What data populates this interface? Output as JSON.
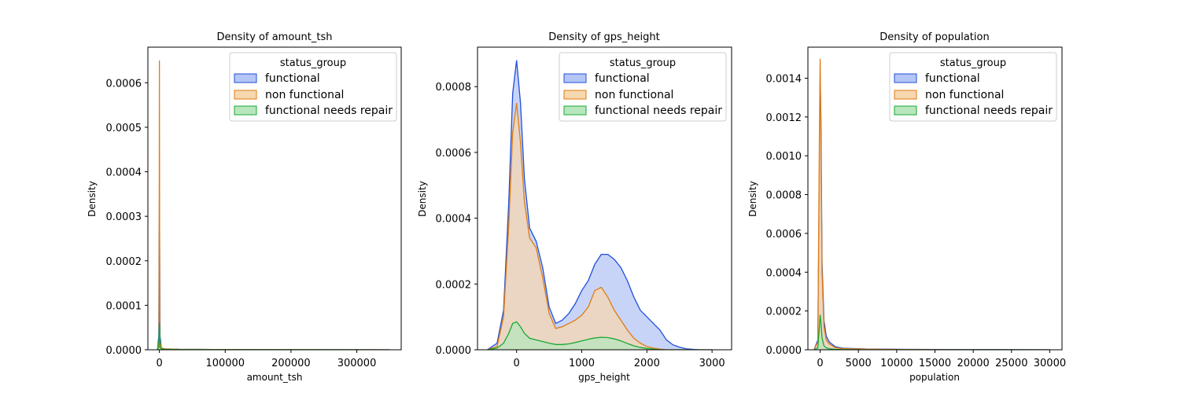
{
  "chart_data": [
    {
      "type": "area",
      "title": "Density of amount_tsh",
      "xlabel": "amount_tsh",
      "ylabel": "Density",
      "xlim": [
        -17500,
        367500
      ],
      "ylim": [
        0,
        0.00068
      ],
      "xticks": [
        0,
        100000,
        200000,
        300000
      ],
      "xtick_labels": [
        "0",
        "100000",
        "200000",
        "300000"
      ],
      "yticks": [
        0,
        0.0001,
        0.0002,
        0.0003,
        0.0004,
        0.0005,
        0.0006
      ],
      "ytick_labels": [
        "0.0000",
        "0.0001",
        "0.0002",
        "0.0003",
        "0.0004",
        "0.0005",
        "0.0006"
      ],
      "legend": {
        "title": "status_group",
        "position": "upper right"
      },
      "series": [
        {
          "name": "functional",
          "color": "#1f4fd8",
          "fill": "#b4c6f5",
          "x": [
            -3000,
            -1000,
            -400,
            0,
            400,
            1000,
            3000,
            8000,
            30000,
            100000,
            350000
          ],
          "y": [
            0,
            3e-05,
            0.00022,
            0.000345,
            0.00022,
            3e-05,
            4e-06,
            2e-06,
            1e-06,
            5e-07,
            0
          ]
        },
        {
          "name": "non functional",
          "color": "#e07b12",
          "fill": "#f6d7b0",
          "x": [
            -3000,
            -600,
            -200,
            0,
            200,
            600,
            3000,
            8000,
            30000,
            100000,
            350000
          ],
          "y": [
            0,
            2e-05,
            0.0004,
            0.00065,
            0.0004,
            2e-05,
            4e-06,
            2e-06,
            1e-06,
            5e-07,
            0
          ]
        },
        {
          "name": "functional needs repair",
          "color": "#1aa832",
          "fill": "#b8e6bd",
          "x": [
            -3000,
            -1000,
            -400,
            0,
            400,
            1000,
            3000,
            8000,
            30000,
            100000,
            350000
          ],
          "y": [
            0,
            5e-06,
            4e-05,
            6e-05,
            4e-05,
            5e-06,
            2e-06,
            1e-06,
            5e-07,
            2e-07,
            0
          ]
        }
      ]
    },
    {
      "type": "area",
      "title": "Density of gps_height",
      "xlabel": "gps_height",
      "ylabel": "Density",
      "xlim": [
        -600,
        3300
      ],
      "ylim": [
        0,
        0.00092
      ],
      "xticks": [
        0,
        1000,
        2000,
        3000
      ],
      "xtick_labels": [
        "0",
        "1000",
        "2000",
        "3000"
      ],
      "yticks": [
        0,
        0.0002,
        0.0004,
        0.0006,
        0.0008
      ],
      "ytick_labels": [
        "0.0000",
        "0.0002",
        "0.0004",
        "0.0006",
        "0.0008"
      ],
      "legend": {
        "title": "status_group",
        "position": "upper right"
      },
      "series": [
        {
          "name": "functional",
          "color": "#1f4fd8",
          "fill": "#b4c6f5",
          "x": [
            -450,
            -300,
            -200,
            -120,
            -60,
            0,
            60,
            120,
            200,
            300,
            400,
            500,
            600,
            700,
            800,
            900,
            1000,
            1100,
            1200,
            1300,
            1400,
            1500,
            1600,
            1700,
            1800,
            1900,
            2000,
            2100,
            2200,
            2300,
            2400,
            2500,
            2600,
            2800,
            3000
          ],
          "y": [
            0,
            2e-05,
            0.00012,
            0.00045,
            0.00078,
            0.00088,
            0.00075,
            0.00052,
            0.00037,
            0.00033,
            0.00025,
            0.00013,
            8e-05,
            9e-05,
            0.00011,
            0.00014,
            0.00018,
            0.00021,
            0.00026,
            0.00029,
            0.00029,
            0.000275,
            0.00025,
            0.00021,
            0.00016,
            0.00012,
            0.0001,
            8e-05,
            6e-05,
            3e-05,
            1.5e-05,
            8e-06,
            3e-06,
            0,
            0
          ]
        },
        {
          "name": "non functional",
          "color": "#e07b12",
          "fill": "#f6d7b0",
          "x": [
            -450,
            -300,
            -200,
            -120,
            -60,
            0,
            60,
            120,
            200,
            300,
            400,
            500,
            600,
            700,
            800,
            900,
            1000,
            1100,
            1200,
            1300,
            1400,
            1500,
            1600,
            1700,
            1800,
            1900,
            2000,
            2100,
            2200,
            2300,
            2400,
            2500,
            2600,
            2800,
            3000
          ],
          "y": [
            0,
            1e-05,
            0.0001,
            0.00038,
            0.00066,
            0.00075,
            0.00063,
            0.00045,
            0.00034,
            0.00031,
            0.00022,
            0.00011,
            6.5e-05,
            7e-05,
            8e-05,
            9e-05,
            0.000105,
            0.00013,
            0.00018,
            0.00019,
            0.00016,
            0.00012,
            9e-05,
            6e-05,
            3.5e-05,
            2e-05,
            1e-05,
            5e-06,
            2e-06,
            0,
            0,
            0,
            0,
            0,
            0
          ]
        },
        {
          "name": "functional needs repair",
          "color": "#1aa832",
          "fill": "#b8e6bd",
          "x": [
            -450,
            -300,
            -200,
            -120,
            -60,
            0,
            60,
            120,
            200,
            300,
            400,
            500,
            600,
            700,
            800,
            900,
            1000,
            1100,
            1200,
            1300,
            1400,
            1500,
            1600,
            1700,
            1800,
            1900,
            2000,
            2100,
            2200,
            2300,
            2400,
            2500,
            2600,
            2800,
            3000
          ],
          "y": [
            0,
            5e-06,
            2e-05,
            5e-05,
            8e-05,
            8.5e-05,
            7e-05,
            5e-05,
            3.5e-05,
            3e-05,
            2.5e-05,
            2e-05,
            1.6e-05,
            1.6e-05,
            1.8e-05,
            2.2e-05,
            2.7e-05,
            3.2e-05,
            3.6e-05,
            3.8e-05,
            3.7e-05,
            3.3e-05,
            2.7e-05,
            1.9e-05,
            1.2e-05,
            7e-06,
            4e-06,
            2e-06,
            0,
            0,
            0,
            0,
            0,
            0,
            0
          ]
        }
      ]
    },
    {
      "type": "area",
      "title": "Density of population",
      "xlabel": "population",
      "ylabel": "Density",
      "xlim": [
        -1600,
        31600
      ],
      "ylim": [
        0,
        0.00156
      ],
      "xticks": [
        0,
        5000,
        10000,
        15000,
        20000,
        25000,
        30000
      ],
      "xtick_labels": [
        "0",
        "5000",
        "10000",
        "15000",
        "20000",
        "25000",
        "30000"
      ],
      "yticks": [
        0,
        0.0002,
        0.0004,
        0.0006,
        0.0008,
        0.001,
        0.0012,
        0.0014
      ],
      "ytick_labels": [
        "0.0000",
        "0.0002",
        "0.0004",
        "0.0006",
        "0.0008",
        "0.0010",
        "0.0012",
        "0.0014"
      ],
      "legend": {
        "title": "status_group",
        "position": "upper right"
      },
      "series": [
        {
          "name": "functional",
          "color": "#1f4fd8",
          "fill": "#b4c6f5",
          "x": [
            -800,
            -300,
            -100,
            0,
            100,
            250,
            500,
            800,
            1200,
            2000,
            3000,
            6000,
            12000,
            20000,
            30000
          ],
          "y": [
            0,
            5e-05,
            0.0009,
            0.0014,
            0.0012,
            0.00045,
            0.00015,
            7e-05,
            4e-05,
            1.5e-05,
            8e-06,
            4e-06,
            2e-06,
            1e-06,
            0
          ]
        },
        {
          "name": "non functional",
          "color": "#e07b12",
          "fill": "#f6d7b0",
          "x": [
            -800,
            -300,
            -100,
            0,
            100,
            250,
            500,
            800,
            1200,
            2000,
            3000,
            6000,
            12000,
            20000,
            30000
          ],
          "y": [
            0,
            4e-05,
            0.0011,
            0.0015,
            0.0011,
            0.0004,
            0.00012,
            5e-05,
            3e-05,
            1e-05,
            6e-06,
            3e-06,
            1e-06,
            0,
            0
          ]
        },
        {
          "name": "functional needs repair",
          "color": "#1aa832",
          "fill": "#b8e6bd",
          "x": [
            -800,
            -300,
            -100,
            0,
            100,
            250,
            500,
            800,
            1200,
            2000,
            3000,
            6000,
            12000,
            20000,
            30000
          ],
          "y": [
            0,
            1e-05,
            0.00012,
            0.00018,
            0.00014,
            6e-05,
            2e-05,
            1e-05,
            5e-06,
            2e-06,
            1e-06,
            0,
            0,
            0,
            0
          ]
        }
      ]
    }
  ]
}
